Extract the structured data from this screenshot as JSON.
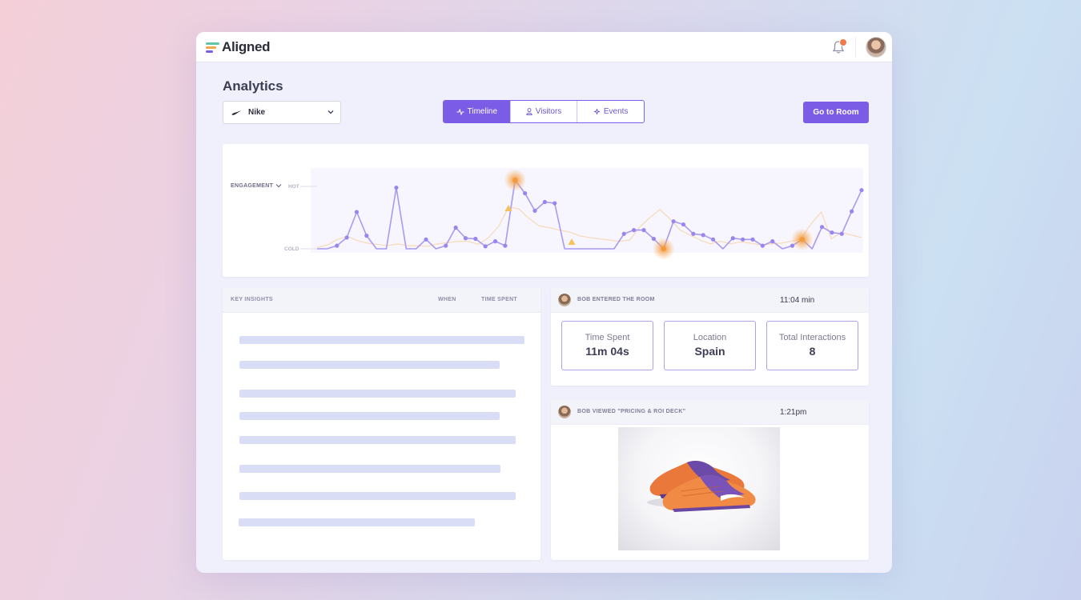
{
  "app": {
    "name": "Aligned",
    "notification_count": "1"
  },
  "page": {
    "title": "Analytics"
  },
  "brand_select": {
    "value": "Nike",
    "icon": "nike-swoosh-icon"
  },
  "tabs": [
    {
      "label": "Timeline",
      "icon": "activity-icon",
      "active": true
    },
    {
      "label": "Visitors",
      "icon": "user-icon",
      "active": false
    },
    {
      "label": "Events",
      "icon": "sparkle-icon",
      "active": false
    }
  ],
  "actions": {
    "go_room_label": "Go to Room"
  },
  "engagement_chart": {
    "selector_label": "ENGAGEMENT",
    "hot_label": "HOT",
    "cold_label": "COLD",
    "colors": {
      "line": "#a99af0",
      "point": "#9a85ee",
      "secondary": "#f5c784",
      "hotspot": "#f39a3a"
    },
    "engagement_series": [
      0,
      0,
      0.05,
      0.18,
      0.59,
      0.21,
      0,
      0,
      0.98,
      0,
      0,
      0.15,
      0,
      0.05,
      0.34,
      0.17,
      0.16,
      0.04,
      0.12,
      0.05,
      1.1,
      0.89,
      0.61,
      0.75,
      0.73,
      0,
      0,
      0,
      0,
      0,
      0,
      0.24,
      0.3,
      0.3,
      0.16,
      0,
      0.44,
      0.39,
      0.24,
      0.22,
      0.15,
      0,
      0.17,
      0.15,
      0.15,
      0.05,
      0.12,
      0,
      0.05,
      0.15,
      0,
      0.35,
      0.26,
      0.24,
      0.6,
      0.94
    ],
    "secondary_series": [
      0.02,
      0.06,
      0.15,
      0.2,
      0.13,
      0.09,
      0.07,
      0.05,
      0.08,
      0.05,
      0.05,
      0.04,
      0.08,
      0.1,
      0.12,
      0.12,
      0.07,
      0.18,
      0.36,
      0.67,
      0.64,
      0.49,
      0.37,
      0.34,
      0.3,
      0.27,
      0.21,
      0.18,
      0.16,
      0.14,
      0.12,
      0.14,
      0.35,
      0.5,
      0.63,
      0.48,
      0.3,
      0.22,
      0.14,
      0.08,
      0.12,
      0.08,
      0.11,
      0.09,
      0.06,
      0.08,
      0.09,
      0.12,
      0.16,
      0.4,
      0.59,
      0.16,
      0.26,
      0.22,
      0.18
    ],
    "hotspot_indices": [
      20,
      35,
      49
    ]
  },
  "insights": {
    "header": "KEY INSIGHTS",
    "when_label": "WHEN",
    "time_spent_label": "TIME SPENT"
  },
  "room_event": {
    "title": "BOB ENTERED THE ROOM",
    "time": "11:04 min",
    "stats": [
      {
        "label": "Time Spent",
        "value": "11m 04s"
      },
      {
        "label": "Location",
        "value": "Spain"
      },
      {
        "label": "Total Interactions",
        "value": "8"
      }
    ]
  },
  "deck_event": {
    "title": "BOB VIEWED \"PRICING & ROI DECK\"",
    "time": "1:21pm"
  }
}
